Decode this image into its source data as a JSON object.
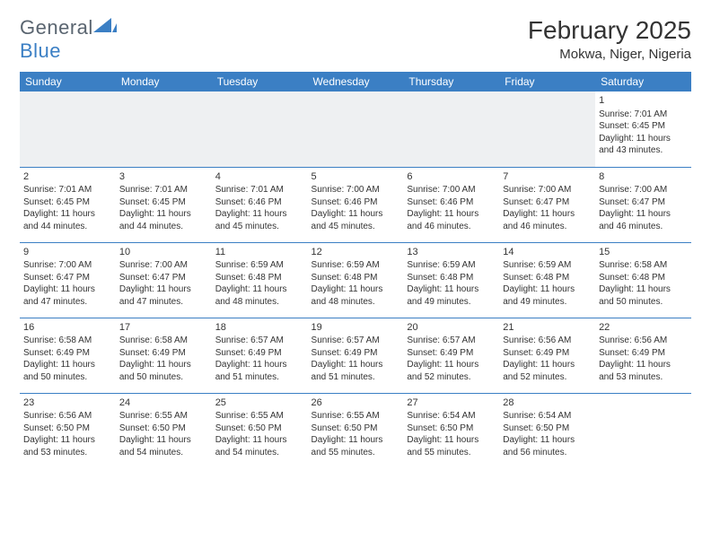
{
  "logo": {
    "textA": "General",
    "textB": "Blue"
  },
  "title": "February 2025",
  "location": "Mokwa, Niger, Nigeria",
  "header_bg": "#3b7fc4",
  "weekdays": [
    "Sunday",
    "Monday",
    "Tuesday",
    "Wednesday",
    "Thursday",
    "Friday",
    "Saturday"
  ],
  "rows": [
    [
      null,
      null,
      null,
      null,
      null,
      null,
      {
        "n": "1",
        "sr": "Sunrise: 7:01 AM",
        "ss": "Sunset: 6:45 PM",
        "d1": "Daylight: 11 hours",
        "d2": "and 43 minutes."
      }
    ],
    [
      {
        "n": "2",
        "sr": "Sunrise: 7:01 AM",
        "ss": "Sunset: 6:45 PM",
        "d1": "Daylight: 11 hours",
        "d2": "and 44 minutes."
      },
      {
        "n": "3",
        "sr": "Sunrise: 7:01 AM",
        "ss": "Sunset: 6:45 PM",
        "d1": "Daylight: 11 hours",
        "d2": "and 44 minutes."
      },
      {
        "n": "4",
        "sr": "Sunrise: 7:01 AM",
        "ss": "Sunset: 6:46 PM",
        "d1": "Daylight: 11 hours",
        "d2": "and 45 minutes."
      },
      {
        "n": "5",
        "sr": "Sunrise: 7:00 AM",
        "ss": "Sunset: 6:46 PM",
        "d1": "Daylight: 11 hours",
        "d2": "and 45 minutes."
      },
      {
        "n": "6",
        "sr": "Sunrise: 7:00 AM",
        "ss": "Sunset: 6:46 PM",
        "d1": "Daylight: 11 hours",
        "d2": "and 46 minutes."
      },
      {
        "n": "7",
        "sr": "Sunrise: 7:00 AM",
        "ss": "Sunset: 6:47 PM",
        "d1": "Daylight: 11 hours",
        "d2": "and 46 minutes."
      },
      {
        "n": "8",
        "sr": "Sunrise: 7:00 AM",
        "ss": "Sunset: 6:47 PM",
        "d1": "Daylight: 11 hours",
        "d2": "and 46 minutes."
      }
    ],
    [
      {
        "n": "9",
        "sr": "Sunrise: 7:00 AM",
        "ss": "Sunset: 6:47 PM",
        "d1": "Daylight: 11 hours",
        "d2": "and 47 minutes."
      },
      {
        "n": "10",
        "sr": "Sunrise: 7:00 AM",
        "ss": "Sunset: 6:47 PM",
        "d1": "Daylight: 11 hours",
        "d2": "and 47 minutes."
      },
      {
        "n": "11",
        "sr": "Sunrise: 6:59 AM",
        "ss": "Sunset: 6:48 PM",
        "d1": "Daylight: 11 hours",
        "d2": "and 48 minutes."
      },
      {
        "n": "12",
        "sr": "Sunrise: 6:59 AM",
        "ss": "Sunset: 6:48 PM",
        "d1": "Daylight: 11 hours",
        "d2": "and 48 minutes."
      },
      {
        "n": "13",
        "sr": "Sunrise: 6:59 AM",
        "ss": "Sunset: 6:48 PM",
        "d1": "Daylight: 11 hours",
        "d2": "and 49 minutes."
      },
      {
        "n": "14",
        "sr": "Sunrise: 6:59 AM",
        "ss": "Sunset: 6:48 PM",
        "d1": "Daylight: 11 hours",
        "d2": "and 49 minutes."
      },
      {
        "n": "15",
        "sr": "Sunrise: 6:58 AM",
        "ss": "Sunset: 6:48 PM",
        "d1": "Daylight: 11 hours",
        "d2": "and 50 minutes."
      }
    ],
    [
      {
        "n": "16",
        "sr": "Sunrise: 6:58 AM",
        "ss": "Sunset: 6:49 PM",
        "d1": "Daylight: 11 hours",
        "d2": "and 50 minutes."
      },
      {
        "n": "17",
        "sr": "Sunrise: 6:58 AM",
        "ss": "Sunset: 6:49 PM",
        "d1": "Daylight: 11 hours",
        "d2": "and 50 minutes."
      },
      {
        "n": "18",
        "sr": "Sunrise: 6:57 AM",
        "ss": "Sunset: 6:49 PM",
        "d1": "Daylight: 11 hours",
        "d2": "and 51 minutes."
      },
      {
        "n": "19",
        "sr": "Sunrise: 6:57 AM",
        "ss": "Sunset: 6:49 PM",
        "d1": "Daylight: 11 hours",
        "d2": "and 51 minutes."
      },
      {
        "n": "20",
        "sr": "Sunrise: 6:57 AM",
        "ss": "Sunset: 6:49 PM",
        "d1": "Daylight: 11 hours",
        "d2": "and 52 minutes."
      },
      {
        "n": "21",
        "sr": "Sunrise: 6:56 AM",
        "ss": "Sunset: 6:49 PM",
        "d1": "Daylight: 11 hours",
        "d2": "and 52 minutes."
      },
      {
        "n": "22",
        "sr": "Sunrise: 6:56 AM",
        "ss": "Sunset: 6:49 PM",
        "d1": "Daylight: 11 hours",
        "d2": "and 53 minutes."
      }
    ],
    [
      {
        "n": "23",
        "sr": "Sunrise: 6:56 AM",
        "ss": "Sunset: 6:50 PM",
        "d1": "Daylight: 11 hours",
        "d2": "and 53 minutes."
      },
      {
        "n": "24",
        "sr": "Sunrise: 6:55 AM",
        "ss": "Sunset: 6:50 PM",
        "d1": "Daylight: 11 hours",
        "d2": "and 54 minutes."
      },
      {
        "n": "25",
        "sr": "Sunrise: 6:55 AM",
        "ss": "Sunset: 6:50 PM",
        "d1": "Daylight: 11 hours",
        "d2": "and 54 minutes."
      },
      {
        "n": "26",
        "sr": "Sunrise: 6:55 AM",
        "ss": "Sunset: 6:50 PM",
        "d1": "Daylight: 11 hours",
        "d2": "and 55 minutes."
      },
      {
        "n": "27",
        "sr": "Sunrise: 6:54 AM",
        "ss": "Sunset: 6:50 PM",
        "d1": "Daylight: 11 hours",
        "d2": "and 55 minutes."
      },
      {
        "n": "28",
        "sr": "Sunrise: 6:54 AM",
        "ss": "Sunset: 6:50 PM",
        "d1": "Daylight: 11 hours",
        "d2": "and 56 minutes."
      },
      null
    ]
  ]
}
